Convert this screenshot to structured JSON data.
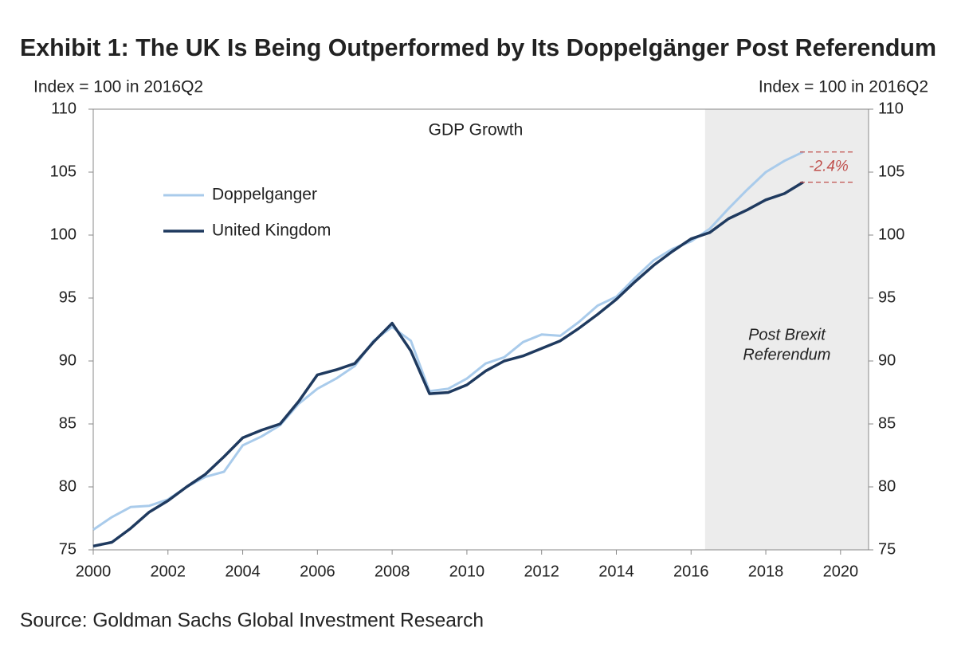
{
  "chart_data": {
    "type": "line",
    "title": "Exhibit 1: The UK Is Being Outperformed by Its Doppelgänger Post Referendum",
    "subtitle": "GDP Growth",
    "y_label": "Index = 100 in 2016Q2",
    "y2_label": "Index = 100 in 2016Q2",
    "source": "Source: Goldman Sachs Global Investment Research",
    "x": [
      2000,
      2000.5,
      2001,
      2001.5,
      2002,
      2002.5,
      2003,
      2003.5,
      2004,
      2004.5,
      2005,
      2005.5,
      2006,
      2006.5,
      2007,
      2007.5,
      2008,
      2008.5,
      2009,
      2009.5,
      2010,
      2010.5,
      2011,
      2011.5,
      2012,
      2012.5,
      2013,
      2013.5,
      2014,
      2014.5,
      2015,
      2015.5,
      2016,
      2016.5,
      2017,
      2017.5,
      2018,
      2018.5,
      2019
    ],
    "series": [
      {
        "name": "Doppelganger",
        "color": "#a9cbeb",
        "values": [
          76.6,
          77.6,
          78.4,
          78.5,
          79.0,
          80.0,
          80.8,
          81.2,
          83.3,
          84.0,
          84.9,
          86.6,
          87.8,
          88.6,
          89.6,
          91.6,
          92.7,
          91.6,
          87.6,
          87.8,
          88.6,
          89.8,
          90.3,
          91.5,
          92.1,
          92.0,
          93.1,
          94.4,
          95.1,
          96.6,
          98.0,
          98.9,
          99.5,
          100.5,
          102.1,
          103.6,
          105.0,
          105.9,
          106.6
        ]
      },
      {
        "name": "United Kingdom",
        "color": "#1f3a5f",
        "values": [
          75.3,
          75.6,
          76.7,
          78.0,
          78.9,
          80.0,
          81.0,
          82.4,
          83.9,
          84.5,
          85.0,
          86.8,
          88.9,
          89.3,
          89.8,
          91.5,
          93.0,
          90.8,
          87.4,
          87.5,
          88.1,
          89.2,
          90.0,
          90.4,
          91.0,
          91.6,
          92.6,
          93.7,
          94.9,
          96.3,
          97.6,
          98.7,
          99.7,
          100.2,
          101.3,
          102.0,
          102.8,
          103.3,
          104.2
        ]
      }
    ],
    "xlim": [
      2000,
      2020.75
    ],
    "xticks": [
      2000,
      2002,
      2004,
      2006,
      2008,
      2010,
      2012,
      2014,
      2016,
      2018,
      2020
    ],
    "ylim": [
      75,
      110
    ],
    "yticks": [
      75,
      80,
      85,
      90,
      95,
      100,
      105,
      110
    ],
    "y2lim": [
      75,
      110
    ],
    "y2ticks": [
      75,
      80,
      85,
      90,
      95,
      100,
      105,
      110
    ],
    "shaded_region": {
      "from": 2016.375,
      "color": "#ececec",
      "label": [
        "Post Brexit",
        "Referendum"
      ]
    },
    "gap_annotation": {
      "text": "-2.4%",
      "color": "#c0504d"
    },
    "legend": "upper left"
  }
}
